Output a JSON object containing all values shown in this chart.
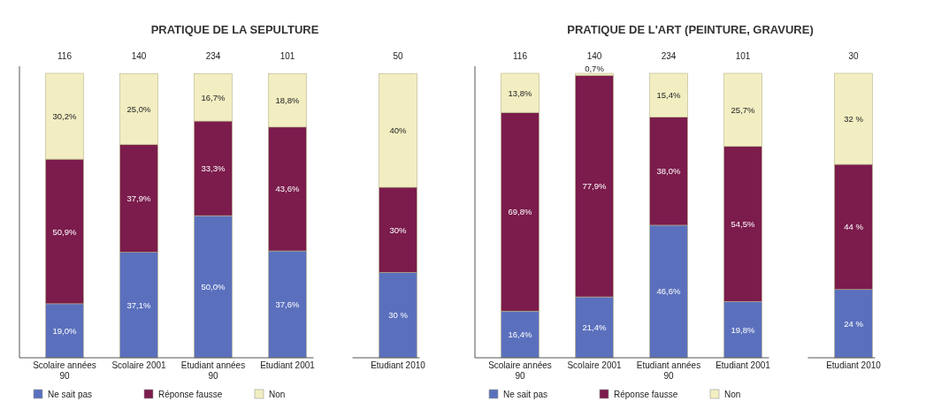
{
  "chart_data": [
    {
      "type": "bar",
      "title": "PRATIQUE DE LA SEPULTURE",
      "stacked": true,
      "legend": "bottom",
      "tick_labels": "x",
      "categories": [
        "Scolaire années 90",
        "Scolaire 2001",
        "Etudiant années 90",
        "Etudiant 2001",
        "Etudiant 2010"
      ],
      "series": [
        {
          "name": "Ne sait pas",
          "color": "#5b70bd",
          "values": [
            19.0,
            37.1,
            50.0,
            37.6,
            30
          ],
          "value_labels": [
            "19,0%",
            "37,1%",
            "50,0%",
            "37,6%",
            "30 %"
          ]
        },
        {
          "name": "Réponse fausse",
          "color": "#7b1c4c",
          "values": [
            50.9,
            37.9,
            33.3,
            43.6,
            30
          ],
          "value_labels": [
            "50,9%",
            "37,9%",
            "33,3%",
            "43,6%",
            "30%"
          ]
        },
        {
          "name": "Non",
          "color": "#f2eec2",
          "values": [
            30.2,
            25.0,
            16.7,
            18.8,
            40
          ],
          "value_labels": [
            "30,2%",
            "25,0%",
            "16,7%",
            "18,8%",
            "40%"
          ]
        }
      ],
      "annotations": [
        {
          "text": "116",
          "x": "Scolaire années 90",
          "y": 100
        },
        {
          "text": "140",
          "x": "Scolaire 2001",
          "y": 100
        },
        {
          "text": "234",
          "x": "Etudiant années 90",
          "y": 100
        },
        {
          "text": "101",
          "x": "Etudiant 2001",
          "y": 100
        },
        {
          "text": "50",
          "x": "Etudiant 2010",
          "y": 100
        }
      ]
    },
    {
      "type": "bar",
      "title": "PRATIQUE DE L'ART (PEINTURE, GRAVURE)",
      "stacked": true,
      "legend": "bottom",
      "tick_labels": "x",
      "categories": [
        "Scolaire années 90",
        "Scolaire 2001",
        "Etudiant années 90",
        "Etudiant 2001",
        "Etudiant 2010"
      ],
      "series": [
        {
          "name": "Ne sait pas",
          "color": "#5b70bd",
          "values": [
            16.4,
            21.4,
            46.6,
            19.8,
            24
          ],
          "value_labels": [
            "16,4%",
            "21,4%",
            "46,6%",
            "19,8%",
            "24 %"
          ]
        },
        {
          "name": "Réponse fausse",
          "color": "#7b1c4c",
          "values": [
            69.8,
            77.9,
            38.0,
            54.5,
            44
          ],
          "value_labels": [
            "69,8%",
            "77,9%",
            "38,0%",
            "54,5%",
            "44 %"
          ]
        },
        {
          "name": "Non",
          "color": "#f2eec2",
          "values": [
            13.8,
            0.7,
            15.4,
            25.7,
            32
          ],
          "value_labels": [
            "13,8%",
            "0,7%",
            "15,4%",
            "25,7%",
            "32 %"
          ]
        }
      ],
      "annotations": [
        {
          "text": "116",
          "x": "Scolaire années 90",
          "y": 100
        },
        {
          "text": "140",
          "x": "Scolaire 2001",
          "y": 100
        },
        {
          "text": "234",
          "x": "Etudiant années 90",
          "y": 100
        },
        {
          "text": "101",
          "x": "Etudiant 2001",
          "y": 100
        },
        {
          "text": "30",
          "x": "Etudiant 2010",
          "y": 100
        }
      ]
    }
  ]
}
